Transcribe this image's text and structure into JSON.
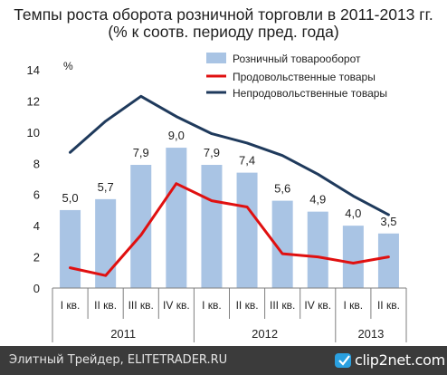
{
  "title_line1": "Темпы роста оборота розничной торговли в 2011-2013 гг.",
  "title_line2": "(% к соотв. периоду пред. года)",
  "footer": {
    "left_text": "Элитный Трейдер, ELITETRADER.RU",
    "logo_text": "clip2net.com",
    "logo_icon": "clip2net-logo-icon"
  },
  "chart_data": {
    "type": "bar",
    "ylabel": "%",
    "ylim": [
      0,
      14
    ],
    "yticks": [
      0,
      2,
      4,
      6,
      8,
      10,
      12,
      14
    ],
    "grid": false,
    "legend_position": "top-right",
    "categories": [
      "I кв.",
      "II кв.",
      "III кв.",
      "IV кв.",
      "I кв.",
      "II кв.",
      "III кв.",
      "IV кв.",
      "I кв.",
      "II кв."
    ],
    "year_groups": [
      {
        "label": "2011",
        "count": 4
      },
      {
        "label": "2012",
        "count": 4
      },
      {
        "label": "2013",
        "count": 2
      }
    ],
    "series": [
      {
        "name": "Розничный товарооборот",
        "kind": "bar",
        "color": "#a9c4e4",
        "values": [
          5.0,
          5.7,
          7.9,
          9.0,
          7.9,
          7.4,
          5.6,
          4.9,
          4.0,
          3.5
        ],
        "data_labels": [
          "5,0",
          "5,7",
          "7,9",
          "9,0",
          "7,9",
          "7,4",
          "5,6",
          "4,9",
          "4,0",
          "3,5"
        ]
      },
      {
        "name": "Продовольственные товары",
        "kind": "line",
        "color": "#e01010",
        "values": [
          1.3,
          0.8,
          3.4,
          6.7,
          5.6,
          5.2,
          2.2,
          2.0,
          1.6,
          2.0
        ]
      },
      {
        "name": "Непродовольственные товары",
        "kind": "line",
        "color": "#1f3a5c",
        "values": [
          8.7,
          10.7,
          12.3,
          11.0,
          9.9,
          9.3,
          8.5,
          7.3,
          5.9,
          4.7
        ]
      }
    ]
  }
}
